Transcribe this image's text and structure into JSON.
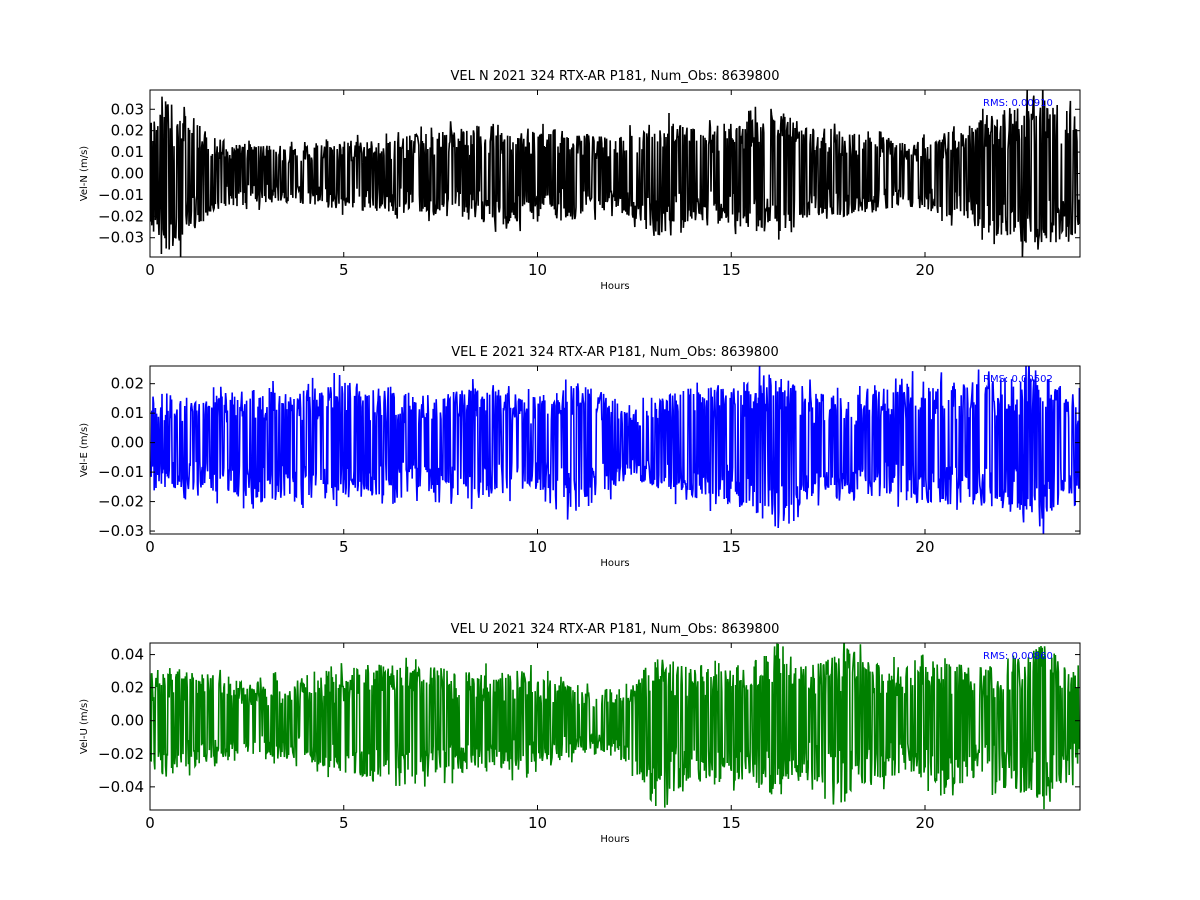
{
  "chart_data": [
    {
      "type": "line",
      "title": "VEL N 2021 324 RTX-AR  P181, Num_Obs: 8639800",
      "xlabel": "Hours",
      "ylabel": "Vel-N (m/s)",
      "xlim": [
        0,
        24
      ],
      "ylim": [
        -0.039,
        0.039
      ],
      "xticks": [
        0,
        5,
        10,
        15,
        20
      ],
      "xtick_labels": [
        "0",
        "5",
        "10",
        "15",
        "20"
      ],
      "yticks": [
        -0.03,
        -0.02,
        -0.01,
        0.0,
        0.01,
        0.02,
        0.03
      ],
      "ytick_labels": [
        "−0.03",
        "−0.02",
        "−0.01",
        "0.00",
        "0.01",
        "0.02",
        "0.03"
      ],
      "annotation": "RMS:  0.00910",
      "color": "#000000",
      "grid": false,
      "series": [
        {
          "x_range": [
            0,
            24
          ],
          "rms": 0.0091,
          "max": 0.039,
          "min": -0.039
        }
      ],
      "envelope": {
        "x": [
          0,
          0.2,
          0.5,
          0.8,
          1.2,
          1.6,
          2,
          2.5,
          3,
          4,
          5,
          6,
          7,
          7.5,
          8,
          8.5,
          9,
          9.5,
          10,
          10.5,
          11,
          11.5,
          12,
          12.5,
          13,
          13.5,
          14,
          14.5,
          15,
          15.5,
          16,
          16.5,
          17,
          17.5,
          18,
          18.5,
          19,
          19.5,
          20,
          20.5,
          21,
          21.5,
          22,
          22.5,
          23,
          23.5,
          24
        ],
        "upper": [
          0.024,
          0.031,
          0.036,
          0.033,
          0.025,
          0.019,
          0.015,
          0.014,
          0.013,
          0.014,
          0.016,
          0.016,
          0.019,
          0.02,
          0.021,
          0.023,
          0.024,
          0.022,
          0.02,
          0.021,
          0.019,
          0.018,
          0.016,
          0.02,
          0.026,
          0.024,
          0.021,
          0.022,
          0.024,
          0.025,
          0.032,
          0.027,
          0.022,
          0.021,
          0.02,
          0.018,
          0.017,
          0.015,
          0.016,
          0.019,
          0.022,
          0.027,
          0.03,
          0.034,
          0.039,
          0.033,
          0.028
        ],
        "lower": [
          -0.026,
          -0.033,
          -0.038,
          -0.034,
          -0.026,
          -0.02,
          -0.016,
          -0.015,
          -0.014,
          -0.015,
          -0.017,
          -0.018,
          -0.019,
          -0.02,
          -0.021,
          -0.023,
          -0.025,
          -0.023,
          -0.021,
          -0.021,
          -0.02,
          -0.018,
          -0.017,
          -0.021,
          -0.031,
          -0.025,
          -0.022,
          -0.023,
          -0.025,
          -0.026,
          -0.029,
          -0.028,
          -0.023,
          -0.021,
          -0.02,
          -0.019,
          -0.017,
          -0.016,
          -0.017,
          -0.02,
          -0.023,
          -0.027,
          -0.031,
          -0.033,
          -0.037,
          -0.032,
          -0.028
        ]
      }
    },
    {
      "type": "line",
      "title": "VEL E 2021 324 RTX-AR  P181, Num_Obs: 8639800",
      "xlabel": "Hours",
      "ylabel": "Vel-E (m/s)",
      "xlim": [
        0,
        24
      ],
      "ylim": [
        -0.031,
        0.026
      ],
      "xticks": [
        0,
        5,
        10,
        15,
        20
      ],
      "xtick_labels": [
        "0",
        "5",
        "10",
        "15",
        "20"
      ],
      "yticks": [
        -0.03,
        -0.02,
        -0.01,
        0.0,
        0.01,
        0.02
      ],
      "ytick_labels": [
        "−0.03",
        "−0.02",
        "−0.01",
        "0.00",
        "0.01",
        "0.02"
      ],
      "annotation": "RMS:  0.00502",
      "color": "#0000ff",
      "grid": false,
      "series": [
        {
          "x_range": [
            0,
            24
          ],
          "rms": 0.00502,
          "max": 0.026,
          "min": -0.031
        }
      ],
      "envelope": {
        "x": [
          0,
          0.5,
          1,
          1.5,
          2,
          2.5,
          3,
          3.5,
          4,
          4.5,
          5,
          5.5,
          6,
          6.5,
          7,
          7.5,
          8,
          8.5,
          9,
          9.5,
          10,
          10.5,
          11,
          11.5,
          12,
          12.5,
          13,
          13.5,
          14,
          14.5,
          15,
          15.5,
          16,
          16.5,
          17,
          17.5,
          18,
          18.5,
          19,
          19.5,
          20,
          20.5,
          21,
          21.5,
          22,
          22.5,
          23,
          23.5,
          24
        ],
        "upper": [
          0.016,
          0.017,
          0.015,
          0.016,
          0.017,
          0.018,
          0.019,
          0.017,
          0.018,
          0.019,
          0.021,
          0.02,
          0.018,
          0.017,
          0.017,
          0.016,
          0.018,
          0.019,
          0.018,
          0.017,
          0.016,
          0.018,
          0.022,
          0.019,
          0.015,
          0.012,
          0.014,
          0.017,
          0.019,
          0.02,
          0.02,
          0.021,
          0.024,
          0.022,
          0.018,
          0.016,
          0.016,
          0.017,
          0.019,
          0.02,
          0.021,
          0.021,
          0.02,
          0.022,
          0.022,
          0.024,
          0.025,
          0.02,
          0.016
        ],
        "lower": [
          -0.016,
          -0.017,
          -0.016,
          -0.017,
          -0.018,
          -0.019,
          -0.021,
          -0.018,
          -0.019,
          -0.019,
          -0.02,
          -0.019,
          -0.018,
          -0.017,
          -0.017,
          -0.017,
          -0.019,
          -0.019,
          -0.018,
          -0.017,
          -0.017,
          -0.019,
          -0.025,
          -0.02,
          -0.015,
          -0.013,
          -0.015,
          -0.018,
          -0.02,
          -0.021,
          -0.021,
          -0.023,
          -0.028,
          -0.031,
          -0.019,
          -0.017,
          -0.017,
          -0.018,
          -0.019,
          -0.02,
          -0.021,
          -0.021,
          -0.021,
          -0.022,
          -0.023,
          -0.025,
          -0.029,
          -0.02,
          -0.017
        ]
      }
    },
    {
      "type": "line",
      "title": "VEL U 2021 324 RTX-AR  P181, Num_Obs: 8639800",
      "xlabel": "Hours",
      "ylabel": "Vel-U (m/s)",
      "xlim": [
        0,
        24
      ],
      "ylim": [
        -0.054,
        0.047
      ],
      "xticks": [
        0,
        5,
        10,
        15,
        20
      ],
      "xtick_labels": [
        "0",
        "5",
        "10",
        "15",
        "20"
      ],
      "yticks": [
        -0.04,
        -0.02,
        0.0,
        0.02,
        0.04
      ],
      "ytick_labels": [
        "−0.04",
        "−0.02",
        "0.00",
        "0.02",
        "0.04"
      ],
      "annotation": "RMS:  0.00860",
      "color": "#008000",
      "grid": false,
      "series": [
        {
          "x_range": [
            0,
            24
          ],
          "rms": 0.0086,
          "max": 0.047,
          "min": -0.054
        }
      ],
      "envelope": {
        "x": [
          0,
          0.5,
          1,
          1.5,
          2,
          2.5,
          3,
          3.5,
          4,
          4.5,
          5,
          5.5,
          6,
          6.5,
          7,
          7.5,
          8,
          8.5,
          9,
          9.5,
          10,
          10.5,
          11,
          11.5,
          12,
          12.5,
          13,
          13.5,
          14,
          14.5,
          15,
          15.5,
          16,
          16.5,
          17,
          17.5,
          18,
          18.5,
          19,
          19.5,
          20,
          20.5,
          21,
          21.5,
          22,
          22.5,
          23,
          23.5,
          24
        ],
        "upper": [
          0.03,
          0.033,
          0.03,
          0.028,
          0.027,
          0.022,
          0.025,
          0.026,
          0.024,
          0.027,
          0.03,
          0.034,
          0.035,
          0.033,
          0.034,
          0.032,
          0.031,
          0.03,
          0.032,
          0.031,
          0.027,
          0.026,
          0.02,
          0.019,
          0.02,
          0.026,
          0.04,
          0.036,
          0.031,
          0.037,
          0.033,
          0.035,
          0.042,
          0.036,
          0.034,
          0.04,
          0.045,
          0.036,
          0.034,
          0.033,
          0.036,
          0.039,
          0.034,
          0.032,
          0.038,
          0.042,
          0.047,
          0.038,
          0.03
        ],
        "lower": [
          -0.03,
          -0.035,
          -0.03,
          -0.028,
          -0.027,
          -0.023,
          -0.026,
          -0.026,
          -0.025,
          -0.028,
          -0.031,
          -0.036,
          -0.04,
          -0.034,
          -0.035,
          -0.033,
          -0.032,
          -0.031,
          -0.033,
          -0.031,
          -0.028,
          -0.027,
          -0.02,
          -0.019,
          -0.022,
          -0.03,
          -0.054,
          -0.04,
          -0.035,
          -0.04,
          -0.036,
          -0.038,
          -0.045,
          -0.04,
          -0.036,
          -0.042,
          -0.047,
          -0.04,
          -0.036,
          -0.035,
          -0.037,
          -0.042,
          -0.038,
          -0.035,
          -0.041,
          -0.045,
          -0.048,
          -0.04,
          -0.032
        ]
      }
    }
  ]
}
